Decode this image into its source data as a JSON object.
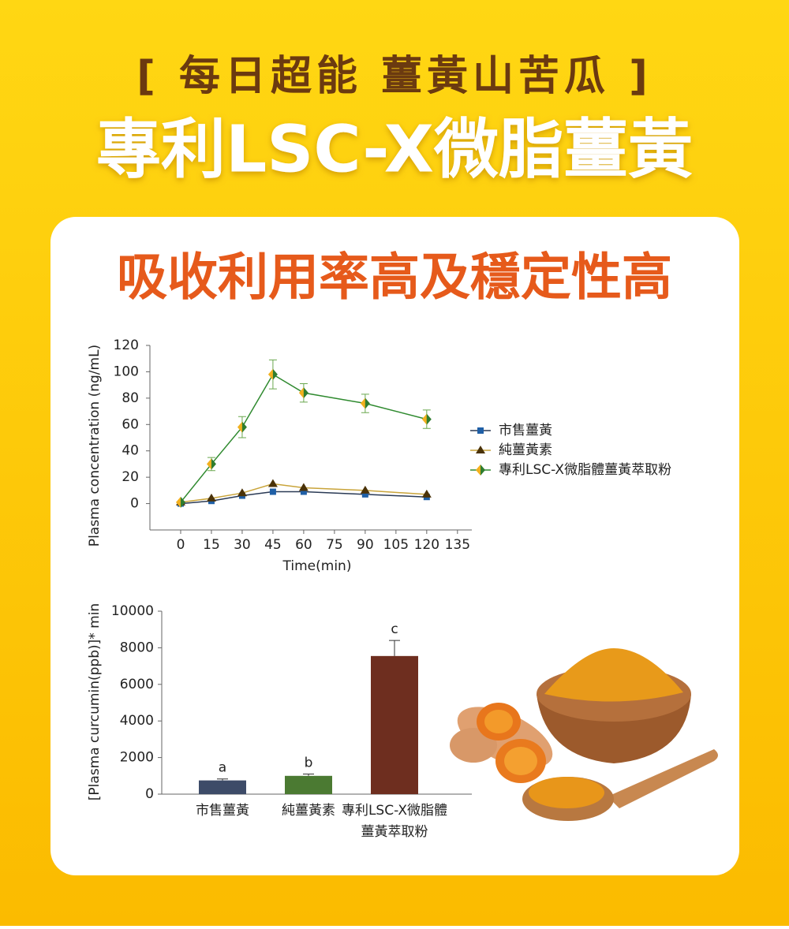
{
  "header": {
    "tagline": "[ 每日超能 薑黃山苦瓜 ]",
    "title": "專利LSC-X微脂薑黃"
  },
  "card": {
    "heading": "吸收利用率高及穩定性高"
  },
  "chart_data": [
    {
      "type": "line",
      "x_label": "Time(min)",
      "y_label": "Plasma concentration (ng/mL)",
      "x": [
        0,
        15,
        30,
        45,
        60,
        90,
        120
      ],
      "xlim": [
        -15,
        142
      ],
      "xticks": [
        0,
        15,
        30,
        45,
        60,
        75,
        90,
        105,
        120,
        135
      ],
      "ylim": [
        -20,
        120
      ],
      "yticks": [
        0,
        20,
        40,
        60,
        80,
        100,
        120
      ],
      "series": [
        {
          "name": "市售薑黃",
          "color": "#1f5fa6",
          "line_color": "#2a3a55",
          "marker": "square",
          "values": [
            0,
            2,
            6,
            9,
            9,
            7,
            5
          ]
        },
        {
          "name": "純薑黃素",
          "color": "#4a3208",
          "line_color": "#c9a43a",
          "marker": "triangle",
          "values": [
            1,
            4,
            8,
            15,
            12,
            10,
            7
          ]
        },
        {
          "name": "專利LSC-X微脂體薑黃萃取粉",
          "color": "#2f7d2f",
          "line_color": "#2f8a2f",
          "marker": "diamond",
          "values": [
            1,
            30,
            58,
            98,
            84,
            76,
            64
          ],
          "errors": [
            0,
            5,
            8,
            11,
            7,
            7,
            7
          ]
        }
      ]
    },
    {
      "type": "bar",
      "y_label": "[Plasma curcumin(ppb)]* min",
      "categories": [
        "市售薑黃",
        "純薑黃素",
        [
          "專利LSC-X微脂體",
          "薑黃萃取粉"
        ]
      ],
      "values": [
        750,
        1000,
        7550
      ],
      "errors": [
        80,
        100,
        850
      ],
      "annotations": [
        "a",
        "b",
        "c"
      ],
      "colors": [
        "#3d4b68",
        "#4b7a32",
        "#6e2e1f"
      ],
      "ylim": [
        0,
        10000
      ],
      "yticks": [
        0,
        2000,
        4000,
        6000,
        8000,
        10000
      ]
    }
  ]
}
